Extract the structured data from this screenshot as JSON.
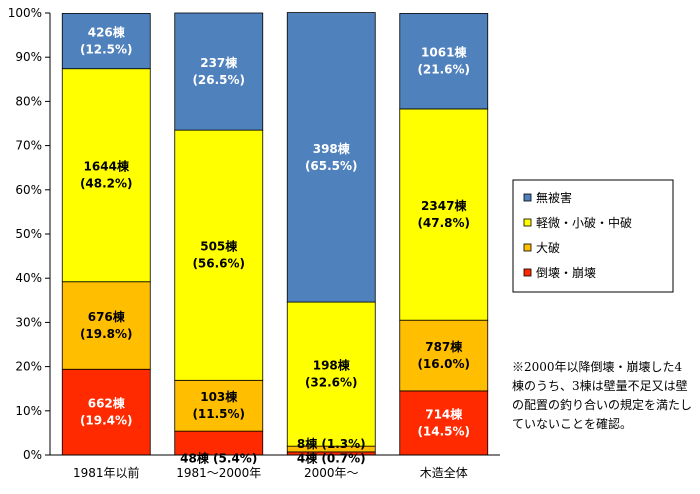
{
  "chart_data": {
    "type": "bar",
    "stacked": true,
    "normalized": true,
    "categories": [
      "1981年以前",
      "1981～2000年",
      "2000年～",
      "木造全体"
    ],
    "series": [
      {
        "name": "倒壊・崩壊",
        "color": "#ff2a00",
        "values": [
          19.4,
          5.4,
          0.7,
          14.5
        ],
        "labels": [
          "662棟\n(19.4%)",
          "48棟 (5.4%)",
          "4棟 (0.7%)",
          "714棟\n(14.5%)"
        ]
      },
      {
        "name": "大破",
        "color": "#ffbf00",
        "values": [
          19.8,
          11.5,
          1.3,
          16.0
        ],
        "labels": [
          "676棟\n(19.8%)",
          "103棟\n(11.5%)",
          "8棟 (1.3%)",
          "787棟\n(16.0%)"
        ]
      },
      {
        "name": "軽微・小破・中破",
        "color": "#ffff00",
        "values": [
          48.2,
          56.6,
          32.6,
          47.8
        ],
        "labels": [
          "1644棟\n(48.2%)",
          "505棟\n(56.6%)",
          "198棟\n(32.6%)",
          "2347棟\n(47.8%)"
        ]
      },
      {
        "name": "無被害",
        "color": "#4f81bd",
        "values": [
          12.5,
          26.5,
          65.5,
          21.6
        ],
        "labels": [
          "426棟\n(12.5%)",
          "237棟\n(26.5%)",
          "398棟\n(65.5%)",
          "1061棟\n(21.6%)"
        ]
      }
    ],
    "y_ticks": [
      "0%",
      "10%",
      "20%",
      "30%",
      "40%",
      "50%",
      "60%",
      "70%",
      "80%",
      "90%",
      "100%"
    ],
    "ylim": [
      0,
      100
    ],
    "grid": false,
    "legend_position": "right",
    "legend_order": [
      "無被害",
      "軽微・小破・中破",
      "大破",
      "倒壊・崩壊"
    ],
    "annotation": "※2000年以降倒壊・崩壊した4棟のうち、3棟は壁量不足又は壁の配置の釣り合いの規定を満たしていないことを確認。"
  }
}
